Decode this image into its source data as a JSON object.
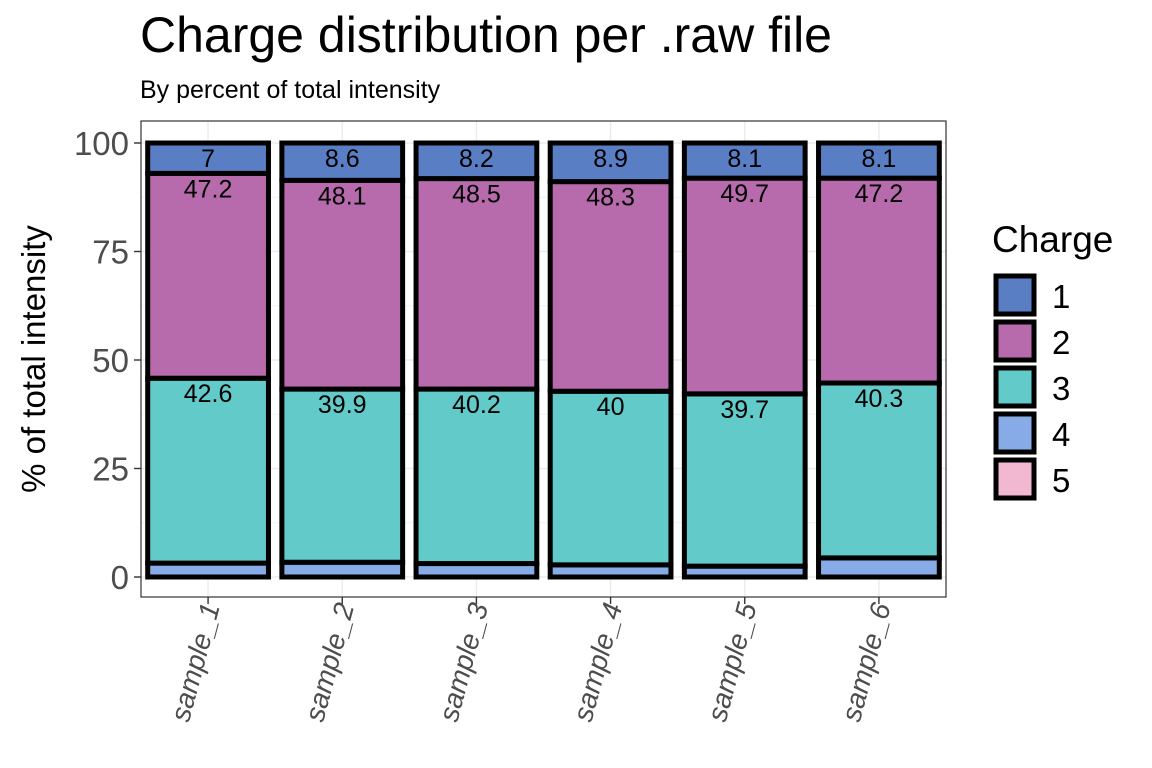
{
  "chart_data": {
    "type": "bar",
    "stacked": true,
    "title": "Charge distribution per .raw file",
    "subtitle": "By percent of total intensity",
    "xlabel": "",
    "ylabel": "% of total intensity",
    "ylim": [
      0,
      100
    ],
    "yticks": [
      0,
      25,
      50,
      75,
      100
    ],
    "categories": [
      "sample_1",
      "sample_2",
      "sample_3",
      "sample_4",
      "sample_5",
      "sample_6"
    ],
    "legend": {
      "title": "Charge",
      "position": "right"
    },
    "series": [
      {
        "name": "1",
        "color": "#5A7EC4",
        "values": [
          7,
          8.6,
          8.2,
          8.9,
          8.1,
          8.1
        ],
        "labels": [
          "7",
          "8.6",
          "8.2",
          "8.9",
          "8.1",
          "8.1"
        ]
      },
      {
        "name": "2",
        "color": "#B76BAC",
        "values": [
          47.2,
          48.1,
          48.5,
          48.3,
          49.7,
          47.2
        ],
        "labels": [
          "47.2",
          "48.1",
          "48.5",
          "48.3",
          "49.7",
          "47.2"
        ]
      },
      {
        "name": "3",
        "color": "#62CAC8",
        "values": [
          42.6,
          39.9,
          40.2,
          40,
          39.7,
          40.3
        ],
        "labels": [
          "42.6",
          "39.9",
          "40.2",
          "40",
          "39.7",
          "40.3"
        ]
      },
      {
        "name": "4",
        "color": "#86ABE6",
        "values": [
          3.2,
          3.4,
          3.1,
          2.8,
          2.5,
          4.4
        ],
        "labels": [
          "",
          "",
          "",
          "",
          "",
          ""
        ]
      },
      {
        "name": "5",
        "color": "#F2B8D2",
        "values": [
          0,
          0,
          0,
          0,
          0,
          0
        ],
        "labels": [
          "",
          "",
          "",
          "",
          "",
          ""
        ]
      }
    ],
    "grid": true,
    "x_tick_rotation": "angled"
  }
}
